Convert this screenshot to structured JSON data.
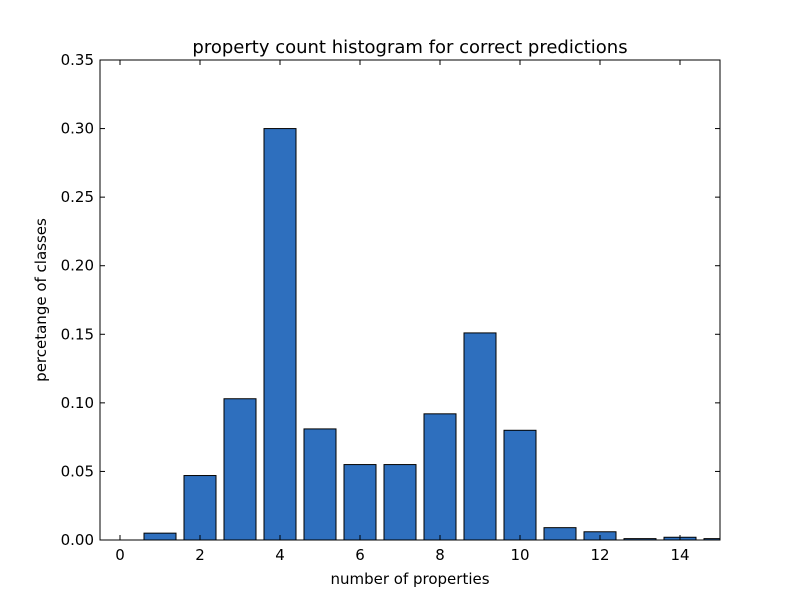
{
  "chart_data": {
    "type": "bar",
    "title": "property count histogram for correct predictions",
    "xlabel": "number of properties",
    "ylabel": "percetange of classes",
    "x": [
      1,
      2,
      3,
      4,
      5,
      6,
      7,
      8,
      9,
      10,
      11,
      12,
      13,
      14,
      15
    ],
    "values": [
      0.005,
      0.047,
      0.103,
      0.3,
      0.081,
      0.055,
      0.055,
      0.092,
      0.151,
      0.08,
      0.009,
      0.006,
      0.001,
      0.002,
      0.001
    ],
    "bar_width": 0.8,
    "xlim": [
      -0.5,
      15
    ],
    "ylim": [
      0,
      0.35
    ],
    "xticks": [
      0,
      2,
      4,
      6,
      8,
      10,
      12,
      14
    ],
    "xtick_labels": [
      "0",
      "2",
      "4",
      "6",
      "8",
      "10",
      "12",
      "14"
    ],
    "yticks": [
      0,
      0.05,
      0.1,
      0.15,
      0.2,
      0.25,
      0.3,
      0.35
    ],
    "ytick_labels": [
      "0.00",
      "0.05",
      "0.10",
      "0.15",
      "0.20",
      "0.25",
      "0.30",
      "0.35"
    ],
    "grid": false,
    "colors": {
      "bar": "#2e6fbe",
      "edge": "#000000"
    }
  }
}
